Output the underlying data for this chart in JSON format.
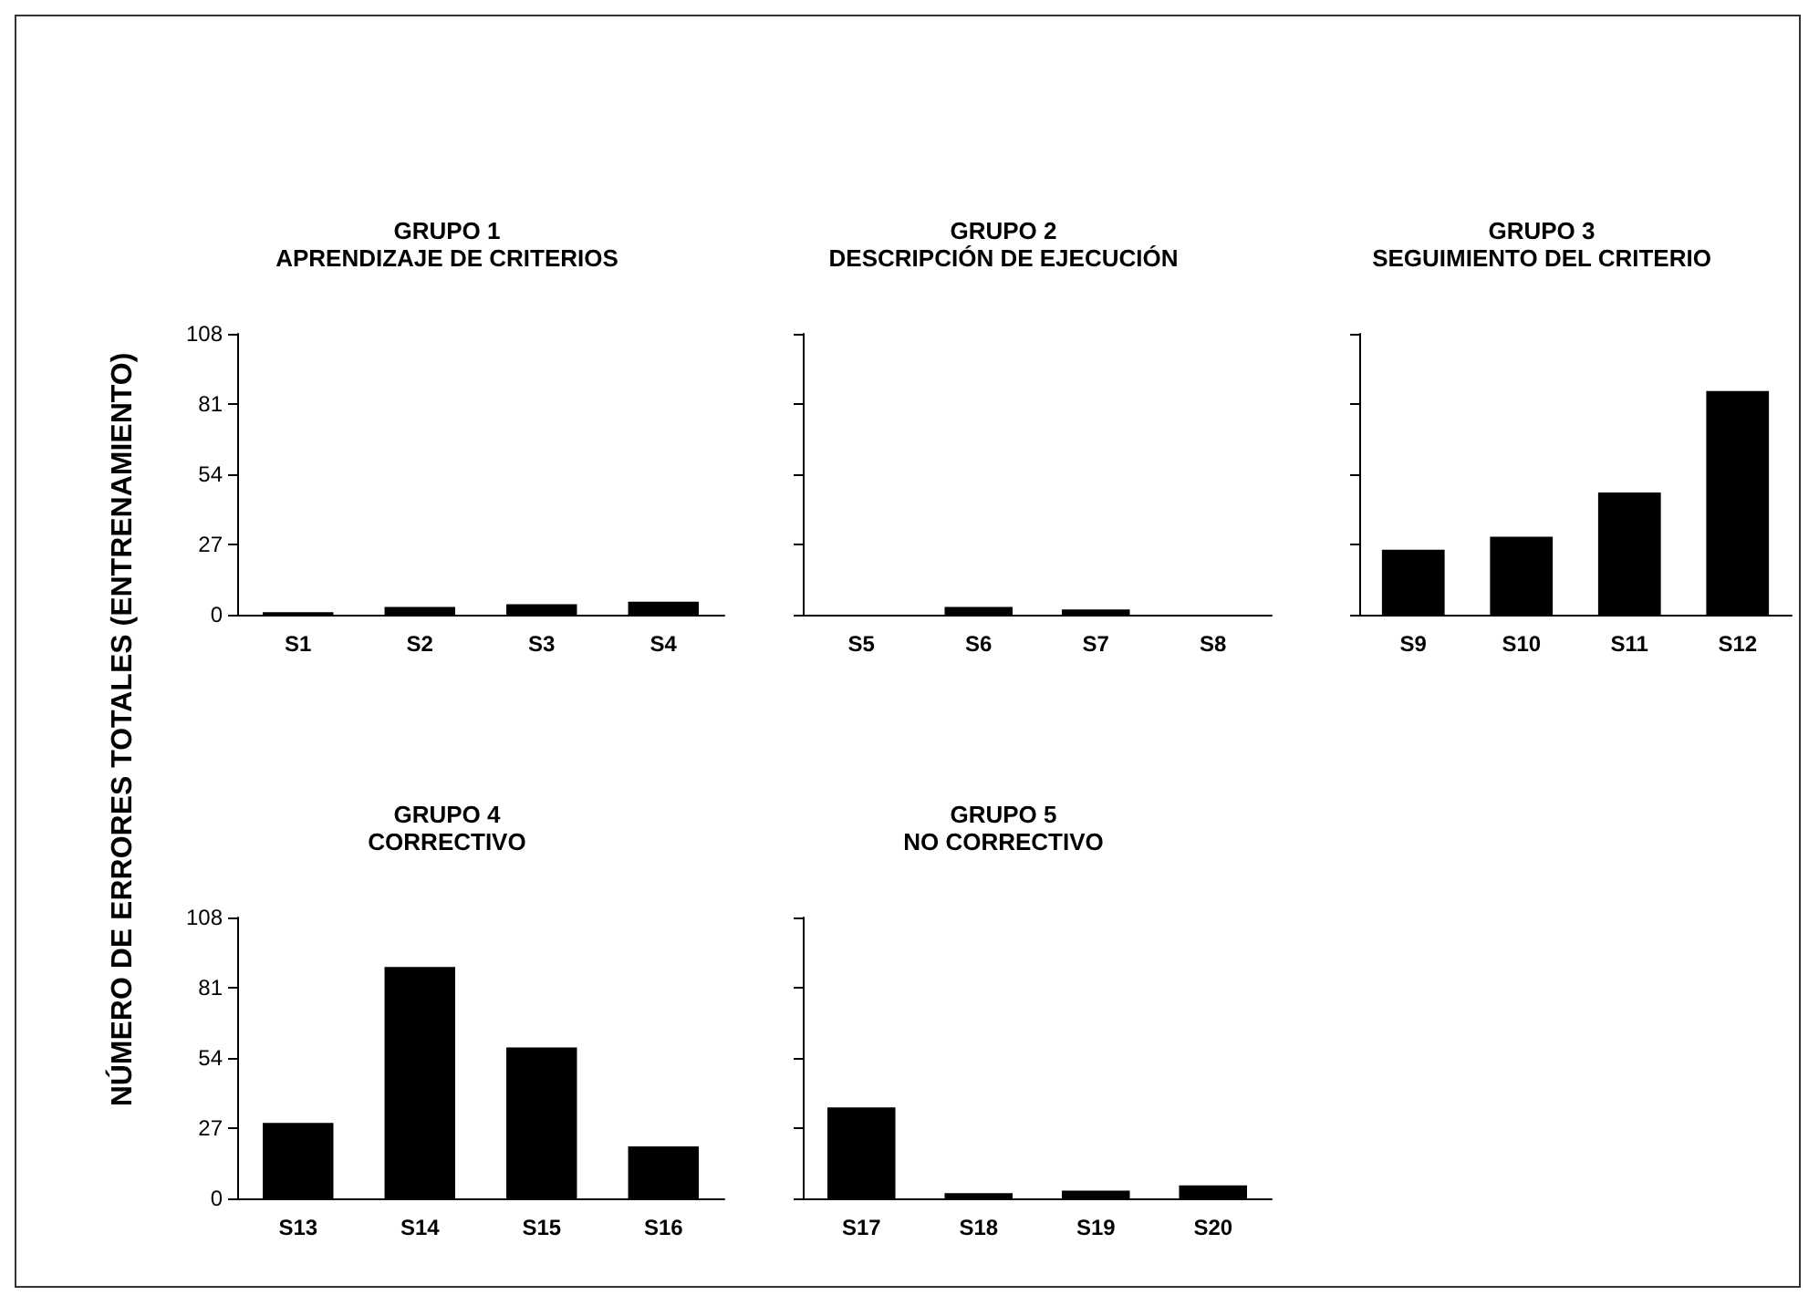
{
  "chart_data": [
    {
      "type": "bar",
      "title": "GRUPO 1",
      "subtitle": "APRENDIZAJE DE CRITERIOS",
      "ylabel": "NÚMERO DE ERRORES TOTALES (ENTRENAMIENTO)",
      "categories": [
        "S1",
        "S2",
        "S3",
        "S4"
      ],
      "values": [
        1,
        3,
        4,
        5
      ],
      "color": "#000000",
      "ylim": [
        0,
        108
      ],
      "yticks": [
        0,
        27,
        54,
        81,
        108
      ],
      "grid": false
    },
    {
      "type": "bar",
      "title": "GRUPO 2",
      "subtitle": "DESCRIPCIÓN DE EJECUCIÓN",
      "categories": [
        "S5",
        "S6",
        "S7",
        "S8"
      ],
      "values": [
        0,
        3,
        2,
        0
      ],
      "color": "#000000",
      "ylim": [
        0,
        108
      ],
      "yticks": [
        0,
        27,
        54,
        81,
        108
      ],
      "grid": false,
      "tick_labels": "x"
    },
    {
      "type": "bar",
      "title": "GRUPO 3",
      "subtitle": "SEGUIMIENTO DEL CRITERIO",
      "categories": [
        "S9",
        "S10",
        "S11",
        "S12"
      ],
      "values": [
        25,
        30,
        47,
        86
      ],
      "color": "#000000",
      "ylim": [
        0,
        108
      ],
      "yticks": [
        0,
        27,
        54,
        81,
        108
      ],
      "grid": false,
      "tick_labels": "x"
    },
    {
      "type": "bar",
      "title": "GRUPO 4",
      "subtitle": "CORRECTIVO",
      "categories": [
        "S13",
        "S14",
        "S15",
        "S16"
      ],
      "values": [
        29,
        89,
        58,
        20
      ],
      "color": "#000000",
      "ylim": [
        0,
        108
      ],
      "yticks": [
        0,
        27,
        54,
        81,
        108
      ],
      "grid": false
    },
    {
      "type": "bar",
      "title": "GRUPO 5",
      "subtitle": "NO CORRECTIVO",
      "categories": [
        "S17",
        "S18",
        "S19",
        "S20"
      ],
      "values": [
        35,
        2,
        3,
        5
      ],
      "color": "#000000",
      "ylim": [
        0,
        108
      ],
      "yticks": [
        0,
        27,
        54,
        81,
        108
      ],
      "grid": false,
      "tick_labels": "x"
    }
  ]
}
